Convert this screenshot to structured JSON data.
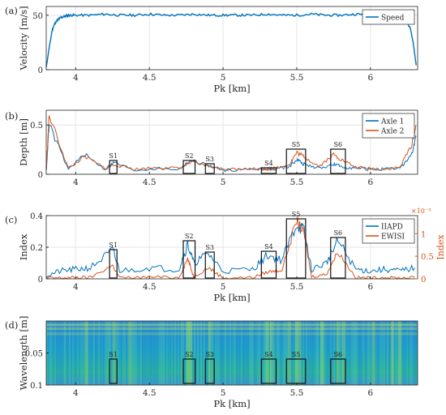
{
  "chart_data": [
    {
      "panel_label": "(a)",
      "type": "line",
      "xlabel": "Pk [km]",
      "ylabel": "Velocity [m/s]",
      "xlim": [
        3.8,
        6.32
      ],
      "ylim": [
        0,
        58
      ],
      "xticks": [
        4,
        4.5,
        5,
        5.5,
        6
      ],
      "xtick_labels": [
        "4",
        "4.5",
        "5",
        "5.5",
        "6"
      ],
      "yticks": [
        0,
        50
      ],
      "ytick_labels": [
        "0",
        "50"
      ],
      "grid": true,
      "legend": {
        "position": "top-right",
        "entries": [
          "Speed"
        ]
      },
      "series": [
        {
          "name": "Speed",
          "color": "#0072BD",
          "x": [
            3.8,
            3.82,
            3.84,
            3.86,
            3.88,
            3.9,
            3.93,
            3.96,
            4.0,
            4.1,
            4.2,
            4.3,
            4.4,
            4.5,
            4.6,
            4.7,
            4.8,
            4.9,
            5.0,
            5.1,
            5.2,
            5.3,
            5.4,
            5.5,
            5.6,
            5.7,
            5.8,
            5.9,
            6.0,
            6.05,
            6.1,
            6.15,
            6.2,
            6.24,
            6.27,
            6.29,
            6.31
          ],
          "y": [
            2,
            20,
            36,
            43,
            46,
            48,
            49,
            50,
            50,
            50,
            51,
            50,
            50,
            51,
            50,
            50,
            51,
            50,
            50,
            50,
            50,
            51,
            50,
            50,
            51,
            50,
            50,
            51,
            50,
            50,
            50,
            49,
            49,
            46,
            38,
            25,
            4
          ]
        }
      ]
    },
    {
      "panel_label": "(b)",
      "type": "line",
      "xlabel": "",
      "ylabel": "Depth [m]",
      "xlim": [
        3.8,
        6.32
      ],
      "ylim": [
        0,
        0.65
      ],
      "xticks": [
        4,
        4.5,
        5,
        5.5,
        6
      ],
      "xtick_labels": [
        "4",
        "4.5",
        "5",
        "5.5",
        "6"
      ],
      "yticks": [
        0,
        0.5
      ],
      "ytick_labels": [
        "0",
        "0.5"
      ],
      "grid": true,
      "legend": {
        "position": "top-right",
        "entries": [
          "Axle 1",
          "Axle 2"
        ]
      },
      "series": [
        {
          "name": "Axle 1",
          "color": "#0072BD",
          "x": [
            3.8,
            3.82,
            3.95,
            4.06,
            4.2,
            4.26,
            4.4,
            4.55,
            4.7,
            4.78,
            4.88,
            5.0,
            5.15,
            5.3,
            5.35,
            5.45,
            5.5,
            5.55,
            5.65,
            5.75,
            5.8,
            5.9,
            6.0,
            6.1,
            6.2,
            6.28,
            6.31
          ],
          "y": [
            0.03,
            0.5,
            0.05,
            0.2,
            0.05,
            0.12,
            0.04,
            0.06,
            0.05,
            0.14,
            0.1,
            0.04,
            0.05,
            0.06,
            0.05,
            0.08,
            0.15,
            0.1,
            0.06,
            0.1,
            0.08,
            0.06,
            0.05,
            0.05,
            0.06,
            0.2,
            0.38
          ]
        },
        {
          "name": "Axle 2",
          "color": "#D95319",
          "x": [
            3.8,
            3.82,
            3.95,
            4.06,
            4.2,
            4.26,
            4.4,
            4.55,
            4.7,
            4.78,
            4.88,
            5.0,
            5.15,
            5.3,
            5.35,
            5.45,
            5.5,
            5.55,
            5.65,
            5.75,
            5.8,
            5.9,
            6.0,
            6.1,
            6.2,
            6.28,
            6.31
          ],
          "y": [
            0.05,
            0.6,
            0.06,
            0.18,
            0.06,
            0.1,
            0.05,
            0.07,
            0.06,
            0.12,
            0.09,
            0.05,
            0.06,
            0.05,
            0.06,
            0.1,
            0.22,
            0.18,
            0.08,
            0.2,
            0.15,
            0.07,
            0.06,
            0.05,
            0.07,
            0.3,
            0.5
          ]
        }
      ],
      "annotations": [
        {
          "label": "S1",
          "x_range": [
            4.23,
            4.28
          ]
        },
        {
          "label": "S2",
          "x_range": [
            4.73,
            4.81
          ]
        },
        {
          "label": "S3",
          "x_range": [
            4.88,
            4.94
          ]
        },
        {
          "label": "S4",
          "x_range": [
            5.26,
            5.36
          ]
        },
        {
          "label": "S5",
          "x_range": [
            5.43,
            5.56
          ]
        },
        {
          "label": "S6",
          "x_range": [
            5.73,
            5.83
          ]
        }
      ]
    },
    {
      "panel_label": "(c)",
      "type": "line",
      "xlabel": "Pk [km]",
      "ylabel": "Index",
      "y2label": "Index",
      "y2_exponent": "×10⁻³",
      "xlim": [
        3.8,
        6.32
      ],
      "ylim": [
        0,
        0.4
      ],
      "y2lim": [
        0,
        1.4
      ],
      "xticks": [
        4,
        4.5,
        5,
        5.5,
        6
      ],
      "xtick_labels": [
        "4",
        "4.5",
        "5",
        "5.5",
        "6"
      ],
      "yticks": [
        0,
        0.2,
        0.4
      ],
      "ytick_labels": [
        "0",
        "0.2",
        "0.4"
      ],
      "y2ticks": [
        0,
        0.5,
        1
      ],
      "y2tick_labels": [
        "0",
        "0.5",
        "1"
      ],
      "grid": true,
      "legend": {
        "position": "top-right",
        "entries": [
          "IIAPD",
          "EWISI"
        ]
      },
      "series": [
        {
          "name": "IIAPD",
          "color": "#0072BD",
          "axis": "left",
          "x": [
            3.8,
            3.9,
            4.0,
            4.1,
            4.25,
            4.3,
            4.5,
            4.7,
            4.76,
            4.8,
            4.9,
            5.0,
            5.2,
            5.3,
            5.4,
            5.5,
            5.55,
            5.6,
            5.7,
            5.78,
            5.9,
            6.0,
            6.1,
            6.2,
            6.3
          ],
          "y": [
            0.02,
            0.05,
            0.06,
            0.07,
            0.18,
            0.05,
            0.07,
            0.06,
            0.22,
            0.1,
            0.16,
            0.05,
            0.06,
            0.15,
            0.12,
            0.35,
            0.3,
            0.06,
            0.1,
            0.24,
            0.06,
            0.05,
            0.06,
            0.05,
            0.07
          ]
        },
        {
          "name": "EWISI",
          "color": "#D95319",
          "axis": "right",
          "x": [
            3.8,
            3.9,
            4.0,
            4.1,
            4.25,
            4.3,
            4.5,
            4.7,
            4.76,
            4.8,
            4.9,
            5.0,
            5.2,
            5.3,
            5.4,
            5.5,
            5.55,
            5.6,
            5.7,
            5.78,
            5.9,
            6.0,
            6.1,
            6.2,
            6.3
          ],
          "y": [
            0.02,
            0.02,
            0.03,
            0.03,
            0.3,
            0.02,
            0.04,
            0.03,
            0.45,
            0.05,
            0.25,
            0.02,
            0.03,
            0.15,
            0.2,
            1.3,
            1.0,
            0.05,
            0.1,
            0.6,
            0.03,
            0.02,
            0.03,
            0.02,
            0.03
          ]
        }
      ],
      "annotations": [
        {
          "label": "S1",
          "x_range": [
            4.23,
            4.28
          ]
        },
        {
          "label": "S2",
          "x_range": [
            4.73,
            4.81
          ]
        },
        {
          "label": "S3",
          "x_range": [
            4.88,
            4.94
          ]
        },
        {
          "label": "S4",
          "x_range": [
            5.26,
            5.36
          ]
        },
        {
          "label": "S5",
          "x_range": [
            5.43,
            5.56
          ]
        },
        {
          "label": "S6",
          "x_range": [
            5.73,
            5.83
          ]
        }
      ]
    },
    {
      "panel_label": "(d)",
      "type": "heatmap",
      "xlabel": "Pk [km]",
      "ylabel": "Wavelength [m]",
      "xlim": [
        3.8,
        6.32
      ],
      "ylim": [
        0.1,
        0
      ],
      "xticks": [
        4,
        4.5,
        5,
        5.5,
        6
      ],
      "xtick_labels": [
        "4",
        "4.5",
        "5",
        "5.5",
        "6"
      ],
      "yticks": [
        0.1,
        0.05
      ],
      "ytick_labels": [
        "0.1",
        "0.05"
      ],
      "colormap": "parula",
      "bright_columns_km": [
        4.07,
        4.26,
        4.37,
        4.76,
        4.78,
        4.91,
        5.3,
        5.33,
        5.45,
        5.5,
        5.52,
        5.67,
        5.78,
        5.82,
        6.02,
        6.15,
        6.2
      ],
      "bright_bands": [
        {
          "wavelength": 0.006,
          "intensity": 0.7
        },
        {
          "wavelength": 0.012,
          "intensity": 0.55
        },
        {
          "wavelength": 0.02,
          "intensity": 0.45
        }
      ],
      "annotations": [
        {
          "label": "S1",
          "x_range": [
            4.23,
            4.28
          ]
        },
        {
          "label": "S2",
          "x_range": [
            4.73,
            4.81
          ]
        },
        {
          "label": "S3",
          "x_range": [
            4.88,
            4.94
          ]
        },
        {
          "label": "S4",
          "x_range": [
            5.26,
            5.36
          ]
        },
        {
          "label": "S5",
          "x_range": [
            5.43,
            5.56
          ]
        },
        {
          "label": "S6",
          "x_range": [
            5.73,
            5.83
          ]
        }
      ]
    }
  ]
}
